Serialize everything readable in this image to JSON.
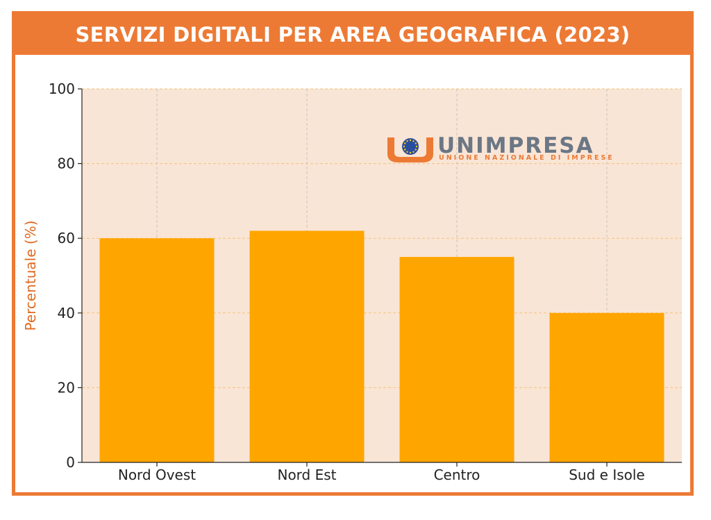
{
  "banner": {
    "title": "SERVIZI DIGITALI PER AREA GEOGRAFICA (2023)"
  },
  "colors": {
    "accent": "#ec7a35",
    "bar": "#ffa500",
    "plot_background": "#f9e5d6",
    "grid": "#f5c27a",
    "axis_label": "#e06a20"
  },
  "logo": {
    "name": "UNIMPRESA",
    "tagline": "UNIONE NAZIONALE DI IMPRESE",
    "icon": "eu-stars-emblem-icon"
  },
  "chart_data": {
    "type": "bar",
    "title": "SERVIZI DIGITALI PER AREA GEOGRAFICA (2023)",
    "categories": [
      "Nord Ovest",
      "Nord Est",
      "Centro",
      "Sud e Isole"
    ],
    "values": [
      60,
      62,
      55,
      40
    ],
    "xlabel": "",
    "ylabel": "Percentuale (%)",
    "ylim": [
      0,
      100
    ],
    "yticks": [
      0,
      20,
      40,
      60,
      80,
      100
    ],
    "grid": true
  }
}
